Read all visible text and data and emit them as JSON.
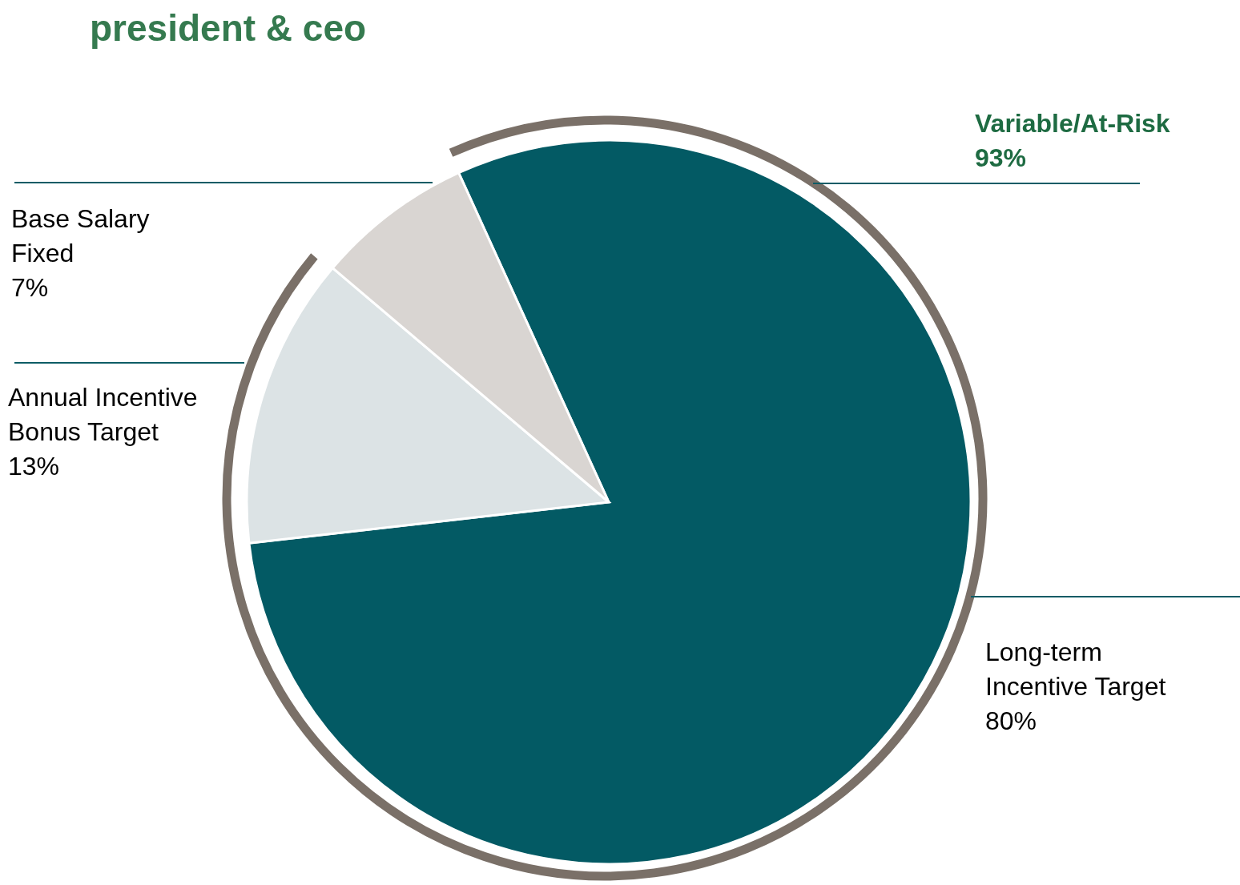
{
  "chart_data": {
    "type": "pie",
    "title": "president & ceo",
    "categories": [
      "Long-term\nIncentive Target",
      "Annual Incentive\nBonus Target",
      "Base Salary\nFixed"
    ],
    "values": [
      80,
      13,
      7
    ],
    "value_labels": [
      "80%",
      "13%",
      "7%"
    ],
    "colors": [
      "#035a64",
      "#dce3e5",
      "#d9d5d2"
    ],
    "annotations": [
      "Variable/At-Risk\n93%"
    ]
  }
}
